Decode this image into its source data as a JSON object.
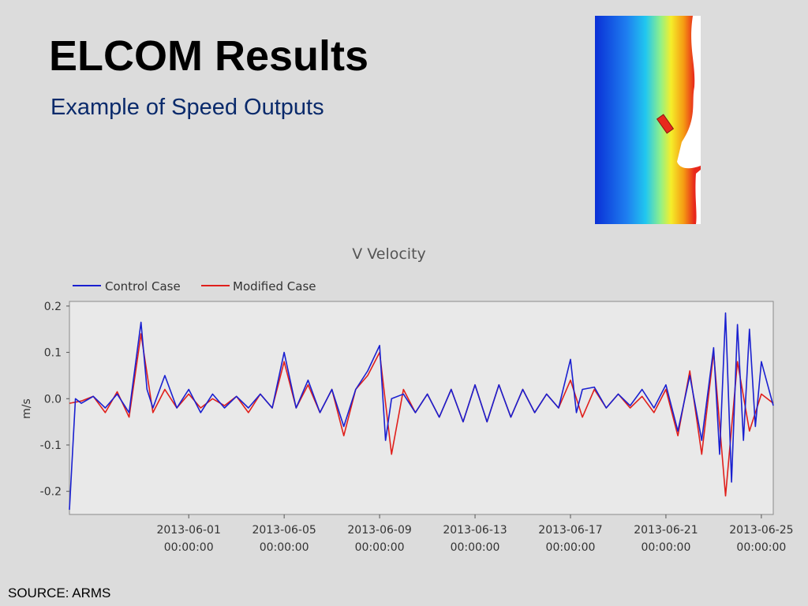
{
  "slide": {
    "title": "ELCOM Results",
    "subtitle": "Example of Speed Outputs",
    "source": "SOURCE: ARMS"
  },
  "map_image": {
    "icon": "velocity-color-map",
    "colors": [
      "#0a2fd6",
      "#1e7ef0",
      "#21c7ef",
      "#8ff08a",
      "#f5ee2a",
      "#f59a12",
      "#e8281c",
      "#ffffff"
    ]
  },
  "chart_data": {
    "type": "line",
    "title": "V Velocity",
    "xlabel": "",
    "ylabel": "m/s",
    "ylim": [
      -0.25,
      0.21
    ],
    "xlim": [
      "2013-05-27",
      "2013-06-25 12:00"
    ],
    "yticks": [
      "0.2",
      "0.1",
      "0.0",
      "-0.1",
      "-0.2"
    ],
    "ytick_values": [
      0.2,
      0.1,
      0.0,
      -0.1,
      -0.2
    ],
    "xticks": [
      {
        "date": "2013-06-01",
        "line1": "2013-06-01",
        "line2": "00:00:00"
      },
      {
        "date": "2013-06-05",
        "line1": "2013-06-05",
        "line2": "00:00:00"
      },
      {
        "date": "2013-06-09",
        "line1": "2013-06-09",
        "line2": "00:00:00"
      },
      {
        "date": "2013-06-13",
        "line1": "2013-06-13",
        "line2": "00:00:00"
      },
      {
        "date": "2013-06-17",
        "line1": "2013-06-17",
        "line2": "00:00:00"
      },
      {
        "date": "2013-06-21",
        "line1": "2013-06-21",
        "line2": "00:00:00"
      },
      {
        "date": "2013-06-25",
        "line1": "2013-06-25",
        "line2": "00:00:00"
      }
    ],
    "grid": false,
    "legend_position": "top-left",
    "series": [
      {
        "name": "Modified Case",
        "color": "#e0201c",
        "points": [
          [
            "2013-05-27",
            -0.01
          ],
          [
            "2013-05-27 12:00",
            -0.005
          ],
          [
            "2013-05-28",
            0.005
          ],
          [
            "2013-05-28 12:00",
            -0.03
          ],
          [
            "2013-05-29",
            0.015
          ],
          [
            "2013-05-29 12:00",
            -0.04
          ],
          [
            "2013-05-30",
            0.14
          ],
          [
            "2013-05-30 12:00",
            -0.03
          ],
          [
            "2013-05-31",
            0.02
          ],
          [
            "2013-05-31 12:00",
            -0.02
          ],
          [
            "2013-06-01",
            0.01
          ],
          [
            "2013-06-01 12:00",
            -0.02
          ],
          [
            "2013-06-02",
            0.0
          ],
          [
            "2013-06-02 12:00",
            -0.015
          ],
          [
            "2013-06-03",
            0.005
          ],
          [
            "2013-06-03 12:00",
            -0.03
          ],
          [
            "2013-06-04",
            0.01
          ],
          [
            "2013-06-04 12:00",
            -0.02
          ],
          [
            "2013-06-05",
            0.08
          ],
          [
            "2013-06-05 12:00",
            -0.02
          ],
          [
            "2013-06-06",
            0.03
          ],
          [
            "2013-06-06 12:00",
            -0.03
          ],
          [
            "2013-06-07",
            0.02
          ],
          [
            "2013-06-07 12:00",
            -0.08
          ],
          [
            "2013-06-08",
            0.02
          ],
          [
            "2013-06-08 12:00",
            0.05
          ],
          [
            "2013-06-09",
            0.1
          ],
          [
            "2013-06-09 12:00",
            -0.12
          ],
          [
            "2013-06-10",
            0.02
          ],
          [
            "2013-06-10 12:00",
            -0.03
          ],
          [
            "2013-06-11",
            0.01
          ],
          [
            "2013-06-11 12:00",
            -0.04
          ],
          [
            "2013-06-12",
            0.02
          ],
          [
            "2013-06-12 12:00",
            -0.05
          ],
          [
            "2013-06-13",
            0.03
          ],
          [
            "2013-06-13 12:00",
            -0.05
          ],
          [
            "2013-06-14",
            0.03
          ],
          [
            "2013-06-14 12:00",
            -0.04
          ],
          [
            "2013-06-15",
            0.02
          ],
          [
            "2013-06-15 12:00",
            -0.03
          ],
          [
            "2013-06-16",
            0.01
          ],
          [
            "2013-06-16 12:00",
            -0.02
          ],
          [
            "2013-06-17",
            0.04
          ],
          [
            "2013-06-17 12:00",
            -0.04
          ],
          [
            "2013-06-18",
            0.02
          ],
          [
            "2013-06-18 12:00",
            -0.02
          ],
          [
            "2013-06-19",
            0.01
          ],
          [
            "2013-06-19 12:00",
            -0.02
          ],
          [
            "2013-06-20",
            0.005
          ],
          [
            "2013-06-20 12:00",
            -0.03
          ],
          [
            "2013-06-21",
            0.02
          ],
          [
            "2013-06-21 12:00",
            -0.08
          ],
          [
            "2013-06-22",
            0.06
          ],
          [
            "2013-06-22 12:00",
            -0.12
          ],
          [
            "2013-06-23",
            0.1
          ],
          [
            "2013-06-23 12:00",
            -0.21
          ],
          [
            "2013-06-24",
            0.08
          ],
          [
            "2013-06-24 12:00",
            -0.07
          ],
          [
            "2013-06-25",
            0.01
          ],
          [
            "2013-06-25 12:00",
            -0.01
          ]
        ]
      },
      {
        "name": "Control Case",
        "color": "#1a20d0",
        "points": [
          [
            "2013-05-27",
            -0.24
          ],
          [
            "2013-05-27 06:00",
            0.0
          ],
          [
            "2013-05-27 12:00",
            -0.01
          ],
          [
            "2013-05-28",
            0.005
          ],
          [
            "2013-05-28 12:00",
            -0.02
          ],
          [
            "2013-05-29",
            0.01
          ],
          [
            "2013-05-29 12:00",
            -0.03
          ],
          [
            "2013-05-30",
            0.165
          ],
          [
            "2013-05-30 06:00",
            0.02
          ],
          [
            "2013-05-30 12:00",
            -0.02
          ],
          [
            "2013-05-31",
            0.05
          ],
          [
            "2013-05-31 12:00",
            -0.02
          ],
          [
            "2013-06-01",
            0.02
          ],
          [
            "2013-06-01 12:00",
            -0.03
          ],
          [
            "2013-06-02",
            0.01
          ],
          [
            "2013-06-02 12:00",
            -0.02
          ],
          [
            "2013-06-03",
            0.005
          ],
          [
            "2013-06-03 12:00",
            -0.02
          ],
          [
            "2013-06-04",
            0.01
          ],
          [
            "2013-06-04 12:00",
            -0.02
          ],
          [
            "2013-06-05",
            0.1
          ],
          [
            "2013-06-05 12:00",
            -0.02
          ],
          [
            "2013-06-06",
            0.04
          ],
          [
            "2013-06-06 12:00",
            -0.03
          ],
          [
            "2013-06-07",
            0.02
          ],
          [
            "2013-06-07 12:00",
            -0.06
          ],
          [
            "2013-06-08",
            0.02
          ],
          [
            "2013-06-08 12:00",
            0.06
          ],
          [
            "2013-06-09",
            0.115
          ],
          [
            "2013-06-09 06:00",
            -0.09
          ],
          [
            "2013-06-09 12:00",
            0.0
          ],
          [
            "2013-06-10",
            0.01
          ],
          [
            "2013-06-10 12:00",
            -0.03
          ],
          [
            "2013-06-11",
            0.01
          ],
          [
            "2013-06-11 12:00",
            -0.04
          ],
          [
            "2013-06-12",
            0.02
          ],
          [
            "2013-06-12 12:00",
            -0.05
          ],
          [
            "2013-06-13",
            0.03
          ],
          [
            "2013-06-13 12:00",
            -0.05
          ],
          [
            "2013-06-14",
            0.03
          ],
          [
            "2013-06-14 12:00",
            -0.04
          ],
          [
            "2013-06-15",
            0.02
          ],
          [
            "2013-06-15 12:00",
            -0.03
          ],
          [
            "2013-06-16",
            0.01
          ],
          [
            "2013-06-16 12:00",
            -0.02
          ],
          [
            "2013-06-17",
            0.085
          ],
          [
            "2013-06-17 06:00",
            -0.03
          ],
          [
            "2013-06-17 12:00",
            0.02
          ],
          [
            "2013-06-18",
            0.025
          ],
          [
            "2013-06-18 12:00",
            -0.02
          ],
          [
            "2013-06-19",
            0.01
          ],
          [
            "2013-06-19 12:00",
            -0.015
          ],
          [
            "2013-06-20",
            0.02
          ],
          [
            "2013-06-20 12:00",
            -0.02
          ],
          [
            "2013-06-21",
            0.03
          ],
          [
            "2013-06-21 12:00",
            -0.07
          ],
          [
            "2013-06-22",
            0.05
          ],
          [
            "2013-06-22 12:00",
            -0.09
          ],
          [
            "2013-06-23",
            0.11
          ],
          [
            "2013-06-23 06:00",
            -0.12
          ],
          [
            "2013-06-23 12:00",
            0.185
          ],
          [
            "2013-06-23 18:00",
            -0.18
          ],
          [
            "2013-06-24",
            0.16
          ],
          [
            "2013-06-24 06:00",
            -0.09
          ],
          [
            "2013-06-24 12:00",
            0.15
          ],
          [
            "2013-06-24 18:00",
            -0.06
          ],
          [
            "2013-06-25",
            0.08
          ],
          [
            "2013-06-25 12:00",
            -0.015
          ]
        ]
      }
    ]
  }
}
